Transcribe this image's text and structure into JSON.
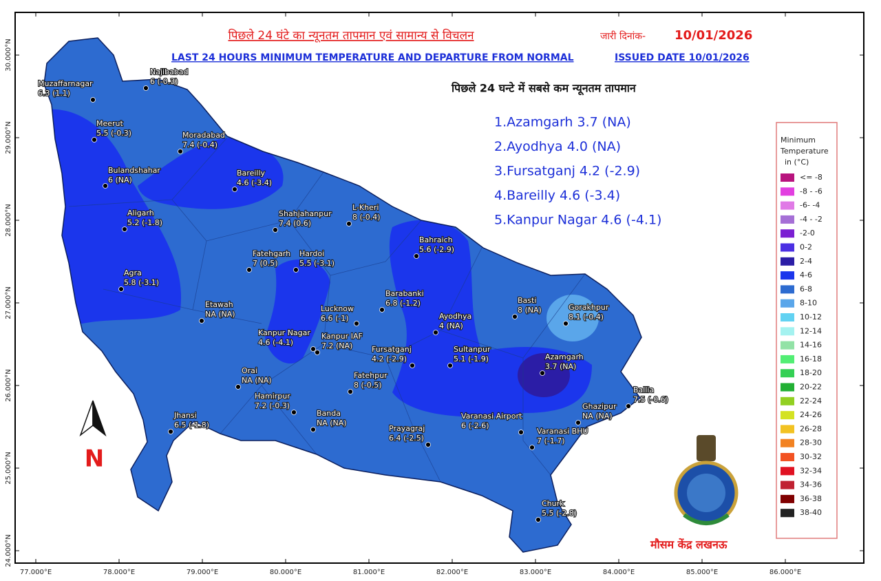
{
  "header": {
    "title_hindi": "पिछले 24 घंटे का न्यूनतम तापमान एवं सामान्य से विचलन",
    "date_label_hindi": "जारी दिनांक-",
    "date": "10/01/2026",
    "title_english": "LAST 24 HOURS MINIMUM TEMPERATURE AND DEPARTURE FROM NORMAL",
    "issued": "ISSUED DATE 10/01/2026"
  },
  "lowest": {
    "heading": "पिछले 24 घन्टे में सबसे कम न्यूनतम तापमान",
    "items": [
      "1.Azamgarh 3.7 (NA)",
      "2.Ayodhya 4.0 (NA)",
      "3.Fursatganj 4.2 (-2.9)",
      "4.Bareilly 4.6 (-3.4)",
      "5.Kanpur Nagar 4.6 (-4.1)"
    ]
  },
  "legend": {
    "title": [
      "Minimum",
      "Temperature",
      "in (°C)"
    ],
    "classes": [
      {
        "label": "<= -8",
        "color": "#b8147e"
      },
      {
        "label": "-8 - -6",
        "color": "#e23fe0"
      },
      {
        "label": "-6- -4",
        "color": "#e07ae6"
      },
      {
        "label": "-4 - -2",
        "color": "#a56fd6"
      },
      {
        "label": "-2-0",
        "color": "#7b1fd2"
      },
      {
        "label": "0-2",
        "color": "#4b2fe3"
      },
      {
        "label": "2-4",
        "color": "#2b1da6"
      },
      {
        "label": "4-6",
        "color": "#1b36ec"
      },
      {
        "label": "6-8",
        "color": "#2d6bd0"
      },
      {
        "label": "8-10",
        "color": "#5aa6ea"
      },
      {
        "label": "10-12",
        "color": "#62d2f2"
      },
      {
        "label": "12-14",
        "color": "#a4f2f0"
      },
      {
        "label": "14-16",
        "color": "#92e2a6"
      },
      {
        "label": "16-18",
        "color": "#52ee74"
      },
      {
        "label": "18-20",
        "color": "#34d054"
      },
      {
        "label": "20-22",
        "color": "#22b034"
      },
      {
        "label": "22-24",
        "color": "#92d022"
      },
      {
        "label": "24-26",
        "color": "#d4e222"
      },
      {
        "label": "26-28",
        "color": "#f2c222"
      },
      {
        "label": "28-30",
        "color": "#f28222"
      },
      {
        "label": "30-32",
        "color": "#f25222"
      },
      {
        "label": "32-34",
        "color": "#e01222"
      },
      {
        "label": "34-36",
        "color": "#c02232"
      },
      {
        "label": "36-38",
        "color": "#800000"
      },
      {
        "label": "38-40",
        "color": "#222222"
      }
    ]
  },
  "stations": [
    {
      "name": "Muzaffarnagar",
      "value": "6.3 (1.1)"
    },
    {
      "name": "Najibabad",
      "value": "6 (-0.3)"
    },
    {
      "name": "Meerut",
      "value": "5.5 (-0.3)"
    },
    {
      "name": "Moradabad",
      "value": "7.4 (-0.4)"
    },
    {
      "name": "Bulandshahar",
      "value": "6 (NA)"
    },
    {
      "name": "Bareilly",
      "value": "4.6 (-3.4)"
    },
    {
      "name": "Shahjahanpur",
      "value": "7.4 (0.6)"
    },
    {
      "name": "L-Kheri",
      "value": "8 (-0.4)"
    },
    {
      "name": "Aligarh",
      "value": "5.2 (-1.8)"
    },
    {
      "name": "Bahraich",
      "value": "5.6 (-2.9)"
    },
    {
      "name": "Fatehgarh",
      "value": "7 (0.5)"
    },
    {
      "name": "Hardoi",
      "value": "5.5 (-3.1)"
    },
    {
      "name": "Agra",
      "value": "5.8 (-3.1)"
    },
    {
      "name": "Barabanki",
      "value": "6.8 (-1.2)"
    },
    {
      "name": "Basti",
      "value": "8 (NA)"
    },
    {
      "name": "Gorakhpur",
      "value": "8.1 (-0.4)"
    },
    {
      "name": "Etawah",
      "value": "NA (NA)"
    },
    {
      "name": "Lucknow",
      "value": "6.6 (-1)"
    },
    {
      "name": "Ayodhya",
      "value": "4 (NA)"
    },
    {
      "name": "Kanpur Nagar",
      "value": "4.6 (-4.1)"
    },
    {
      "name": "Kanpur IAF",
      "value": "7.2 (NA)"
    },
    {
      "name": "Fursatganj",
      "value": "4.2 (-2.9)"
    },
    {
      "name": "Sultanpur",
      "value": "5.1 (-1.9)"
    },
    {
      "name": "Azamgarh",
      "value": "3.7 (NA)"
    },
    {
      "name": "Orai",
      "value": "NA (NA)"
    },
    {
      "name": "Fatehpur",
      "value": "8 (-0.5)"
    },
    {
      "name": "Ballia",
      "value": "7.5 (-0.6)"
    },
    {
      "name": "Hamirpur",
      "value": "7.2 (-0.3)"
    },
    {
      "name": "Ghazipur",
      "value": "NA (NA)"
    },
    {
      "name": "Jhansi",
      "value": "6.5 (-1.8)"
    },
    {
      "name": "Banda",
      "value": "NA (NA)"
    },
    {
      "name": "Varanasi Airport",
      "value": "6 (-2.6)"
    },
    {
      "name": "Prayagraj",
      "value": "6.4 (-2.5)"
    },
    {
      "name": "Varanasi BHU",
      "value": "7 (-1.7)"
    },
    {
      "name": "Churk",
      "value": "5.5 (-2.8)"
    }
  ],
  "latitudes": [
    "30.000°N",
    "29.000°N",
    "28.000°N",
    "27.000°N",
    "26.000°N",
    "25.000°N",
    "24.000°N"
  ],
  "longitudes": [
    "77.000°E",
    "78.000°E",
    "79.000°E",
    "80.000°E",
    "81.000°E",
    "82.000°E",
    "83.000°E",
    "84.000°E",
    "85.000°E",
    "86.000°E"
  ],
  "north": "N",
  "footer": "मौसम केंद्र लखनऊ"
}
